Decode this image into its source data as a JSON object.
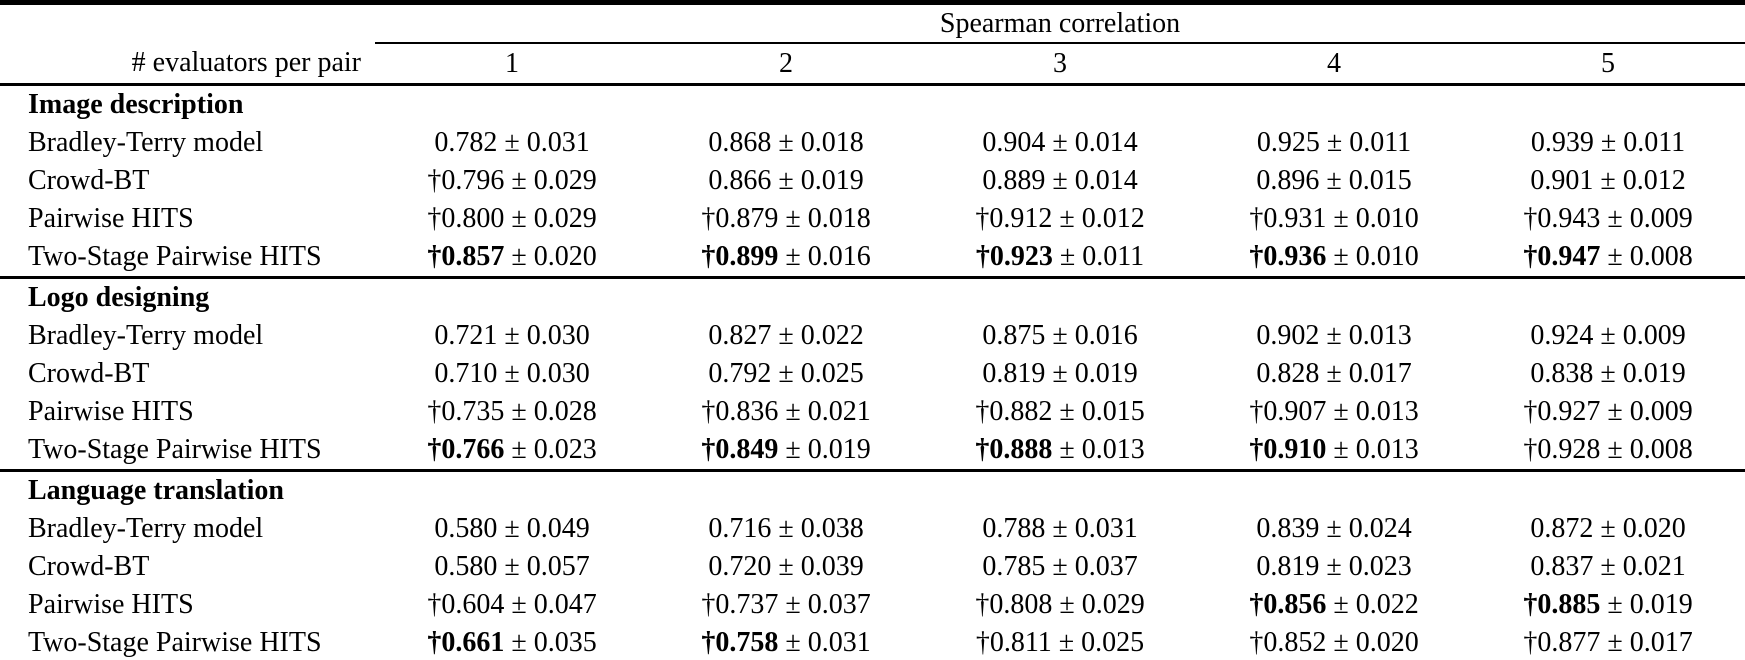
{
  "table": {
    "top_header": "Spearman correlation",
    "row_header_label": "# evaluators per pair",
    "column_headers": [
      "1",
      "2",
      "3",
      "4",
      "5"
    ],
    "pm_symbol": "±",
    "dagger_symbol": "†",
    "sections": [
      {
        "title": "Image description",
        "rows": [
          {
            "label": "Bradley-Terry model",
            "cells": [
              {
                "dagger": false,
                "bold": false,
                "value": "0.782",
                "err": "0.031"
              },
              {
                "dagger": false,
                "bold": false,
                "value": "0.868",
                "err": "0.018"
              },
              {
                "dagger": false,
                "bold": false,
                "value": "0.904",
                "err": "0.014"
              },
              {
                "dagger": false,
                "bold": false,
                "value": "0.925",
                "err": "0.011"
              },
              {
                "dagger": false,
                "bold": false,
                "value": "0.939",
                "err": "0.011"
              }
            ]
          },
          {
            "label": "Crowd-BT",
            "cells": [
              {
                "dagger": true,
                "bold": false,
                "value": "0.796",
                "err": "0.029"
              },
              {
                "dagger": false,
                "bold": false,
                "value": "0.866",
                "err": "0.019"
              },
              {
                "dagger": false,
                "bold": false,
                "value": "0.889",
                "err": "0.014"
              },
              {
                "dagger": false,
                "bold": false,
                "value": "0.896",
                "err": "0.015"
              },
              {
                "dagger": false,
                "bold": false,
                "value": "0.901",
                "err": "0.012"
              }
            ]
          },
          {
            "label": "Pairwise HITS",
            "cells": [
              {
                "dagger": true,
                "bold": false,
                "value": "0.800",
                "err": "0.029"
              },
              {
                "dagger": true,
                "bold": false,
                "value": "0.879",
                "err": "0.018"
              },
              {
                "dagger": true,
                "bold": false,
                "value": "0.912",
                "err": "0.012"
              },
              {
                "dagger": true,
                "bold": false,
                "value": "0.931",
                "err": "0.010"
              },
              {
                "dagger": true,
                "bold": false,
                "value": "0.943",
                "err": "0.009"
              }
            ]
          },
          {
            "label": "Two-Stage Pairwise HITS",
            "cells": [
              {
                "dagger": true,
                "bold": true,
                "value": "0.857",
                "err": "0.020"
              },
              {
                "dagger": true,
                "bold": true,
                "value": "0.899",
                "err": "0.016"
              },
              {
                "dagger": true,
                "bold": true,
                "value": "0.923",
                "err": "0.011"
              },
              {
                "dagger": true,
                "bold": true,
                "value": "0.936",
                "err": "0.010"
              },
              {
                "dagger": true,
                "bold": true,
                "value": "0.947",
                "err": "0.008"
              }
            ]
          }
        ]
      },
      {
        "title": "Logo designing",
        "rows": [
          {
            "label": "Bradley-Terry model",
            "cells": [
              {
                "dagger": false,
                "bold": false,
                "value": "0.721",
                "err": "0.030"
              },
              {
                "dagger": false,
                "bold": false,
                "value": "0.827",
                "err": "0.022"
              },
              {
                "dagger": false,
                "bold": false,
                "value": "0.875",
                "err": "0.016"
              },
              {
                "dagger": false,
                "bold": false,
                "value": "0.902",
                "err": "0.013"
              },
              {
                "dagger": false,
                "bold": false,
                "value": "0.924",
                "err": "0.009"
              }
            ]
          },
          {
            "label": "Crowd-BT",
            "cells": [
              {
                "dagger": false,
                "bold": false,
                "value": "0.710",
                "err": "0.030"
              },
              {
                "dagger": false,
                "bold": false,
                "value": "0.792",
                "err": "0.025"
              },
              {
                "dagger": false,
                "bold": false,
                "value": "0.819",
                "err": "0.019"
              },
              {
                "dagger": false,
                "bold": false,
                "value": "0.828",
                "err": "0.017"
              },
              {
                "dagger": false,
                "bold": false,
                "value": "0.838",
                "err": "0.019"
              }
            ]
          },
          {
            "label": "Pairwise HITS",
            "cells": [
              {
                "dagger": true,
                "bold": false,
                "value": "0.735",
                "err": "0.028"
              },
              {
                "dagger": true,
                "bold": false,
                "value": "0.836",
                "err": "0.021"
              },
              {
                "dagger": true,
                "bold": false,
                "value": "0.882",
                "err": "0.015"
              },
              {
                "dagger": true,
                "bold": false,
                "value": "0.907",
                "err": "0.013"
              },
              {
                "dagger": true,
                "bold": false,
                "value": "0.927",
                "err": "0.009"
              }
            ]
          },
          {
            "label": "Two-Stage Pairwise HITS",
            "cells": [
              {
                "dagger": true,
                "bold": true,
                "value": "0.766",
                "err": "0.023"
              },
              {
                "dagger": true,
                "bold": true,
                "value": "0.849",
                "err": "0.019"
              },
              {
                "dagger": true,
                "bold": true,
                "value": "0.888",
                "err": "0.013"
              },
              {
                "dagger": true,
                "bold": true,
                "value": "0.910",
                "err": "0.013"
              },
              {
                "dagger": true,
                "bold": false,
                "value": "0.928",
                "err": "0.008"
              }
            ]
          }
        ]
      },
      {
        "title": "Language translation",
        "rows": [
          {
            "label": "Bradley-Terry model",
            "cells": [
              {
                "dagger": false,
                "bold": false,
                "value": "0.580",
                "err": "0.049"
              },
              {
                "dagger": false,
                "bold": false,
                "value": "0.716",
                "err": "0.038"
              },
              {
                "dagger": false,
                "bold": false,
                "value": "0.788",
                "err": "0.031"
              },
              {
                "dagger": false,
                "bold": false,
                "value": "0.839",
                "err": "0.024"
              },
              {
                "dagger": false,
                "bold": false,
                "value": "0.872",
                "err": "0.020"
              }
            ]
          },
          {
            "label": "Crowd-BT",
            "cells": [
              {
                "dagger": false,
                "bold": false,
                "value": "0.580",
                "err": "0.057"
              },
              {
                "dagger": false,
                "bold": false,
                "value": "0.720",
                "err": "0.039"
              },
              {
                "dagger": false,
                "bold": false,
                "value": "0.785",
                "err": "0.037"
              },
              {
                "dagger": false,
                "bold": false,
                "value": "0.819",
                "err": "0.023"
              },
              {
                "dagger": false,
                "bold": false,
                "value": "0.837",
                "err": "0.021"
              }
            ]
          },
          {
            "label": "Pairwise HITS",
            "cells": [
              {
                "dagger": true,
                "bold": false,
                "value": "0.604",
                "err": "0.047"
              },
              {
                "dagger": true,
                "bold": false,
                "value": "0.737",
                "err": "0.037"
              },
              {
                "dagger": true,
                "bold": false,
                "value": "0.808",
                "err": "0.029"
              },
              {
                "dagger": true,
                "bold": true,
                "value": "0.856",
                "err": "0.022"
              },
              {
                "dagger": true,
                "bold": true,
                "value": "0.885",
                "err": "0.019"
              }
            ]
          },
          {
            "label": "Two-Stage Pairwise HITS",
            "cells": [
              {
                "dagger": true,
                "bold": true,
                "value": "0.661",
                "err": "0.035"
              },
              {
                "dagger": true,
                "bold": true,
                "value": "0.758",
                "err": "0.031"
              },
              {
                "dagger": true,
                "bold": false,
                "value": "0.811",
                "err": "0.025"
              },
              {
                "dagger": true,
                "bold": false,
                "value": "0.852",
                "err": "0.020"
              },
              {
                "dagger": true,
                "bold": false,
                "value": "0.877",
                "err": "0.017"
              }
            ]
          }
        ]
      }
    ]
  },
  "colors": {
    "background": "#ffffff",
    "text": "#000000",
    "rule": "#000000"
  }
}
